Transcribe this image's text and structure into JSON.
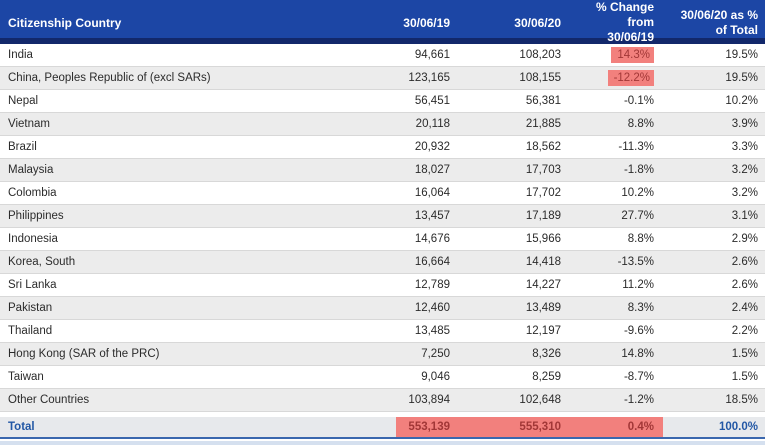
{
  "chart_data": {
    "type": "table",
    "title": "Citizenship country counts as at 30/06/19 and 30/06/20",
    "columns": [
      "Citizenship Country",
      "30/06/19",
      "30/06/20",
      "% Change from 30/06/19",
      "30/06/20 as % of Total"
    ],
    "rows": [
      {
        "country": "India",
        "v2019": "94,661",
        "v2020": "108,203",
        "change": "14.3%",
        "share": "19.5%",
        "hl": true
      },
      {
        "country": "China, Peoples Republic of (excl SARs)",
        "v2019": "123,165",
        "v2020": "108,155",
        "change": "-12.2%",
        "share": "19.5%",
        "hl": true
      },
      {
        "country": "Nepal",
        "v2019": "56,451",
        "v2020": "56,381",
        "change": "-0.1%",
        "share": "10.2%",
        "hl": false
      },
      {
        "country": "Vietnam",
        "v2019": "20,118",
        "v2020": "21,885",
        "change": "8.8%",
        "share": "3.9%",
        "hl": false
      },
      {
        "country": "Brazil",
        "v2019": "20,932",
        "v2020": "18,562",
        "change": "-11.3%",
        "share": "3.3%",
        "hl": false
      },
      {
        "country": "Malaysia",
        "v2019": "18,027",
        "v2020": "17,703",
        "change": "-1.8%",
        "share": "3.2%",
        "hl": false
      },
      {
        "country": "Colombia",
        "v2019": "16,064",
        "v2020": "17,702",
        "change": "10.2%",
        "share": "3.2%",
        "hl": false
      },
      {
        "country": "Philippines",
        "v2019": "13,457",
        "v2020": "17,189",
        "change": "27.7%",
        "share": "3.1%",
        "hl": false
      },
      {
        "country": "Indonesia",
        "v2019": "14,676",
        "v2020": "15,966",
        "change": "8.8%",
        "share": "2.9%",
        "hl": false
      },
      {
        "country": "Korea, South",
        "v2019": "16,664",
        "v2020": "14,418",
        "change": "-13.5%",
        "share": "2.6%",
        "hl": false
      },
      {
        "country": "Sri Lanka",
        "v2019": "12,789",
        "v2020": "14,227",
        "change": "11.2%",
        "share": "2.6%",
        "hl": false
      },
      {
        "country": "Pakistan",
        "v2019": "12,460",
        "v2020": "13,489",
        "change": "8.3%",
        "share": "2.4%",
        "hl": false
      },
      {
        "country": "Thailand",
        "v2019": "13,485",
        "v2020": "12,197",
        "change": "-9.6%",
        "share": "2.2%",
        "hl": false
      },
      {
        "country": "Hong Kong (SAR of the PRC)",
        "v2019": "7,250",
        "v2020": "8,326",
        "change": "14.8%",
        "share": "1.5%",
        "hl": false
      },
      {
        "country": "Taiwan",
        "v2019": "9,046",
        "v2020": "8,259",
        "change": "-8.7%",
        "share": "1.5%",
        "hl": false
      },
      {
        "country": "Other Countries",
        "v2019": "103,894",
        "v2020": "102,648",
        "change": "-1.2%",
        "share": "18.5%",
        "hl": false
      }
    ],
    "total": {
      "label": "Total",
      "v2019": "553,139",
      "v2020": "555,310",
      "change": "0.4%",
      "share": "100.0%"
    }
  },
  "header": {
    "country": "Citizenship Country",
    "y2019": "30/06/19",
    "y2020": "30/06/20",
    "change_line1": "% Change from",
    "change_line2": "30/06/19",
    "share_line1": "30/06/20 as %",
    "share_line2": "of Total"
  },
  "colors": {
    "header_bg": "#1c46a5",
    "header_border": "#12286b",
    "highlight": "#f2807d",
    "highlight_text": "#a23737",
    "total_text": "#2257a5",
    "alt_row": "#ececec",
    "total_bg": "#e7e9ec"
  }
}
